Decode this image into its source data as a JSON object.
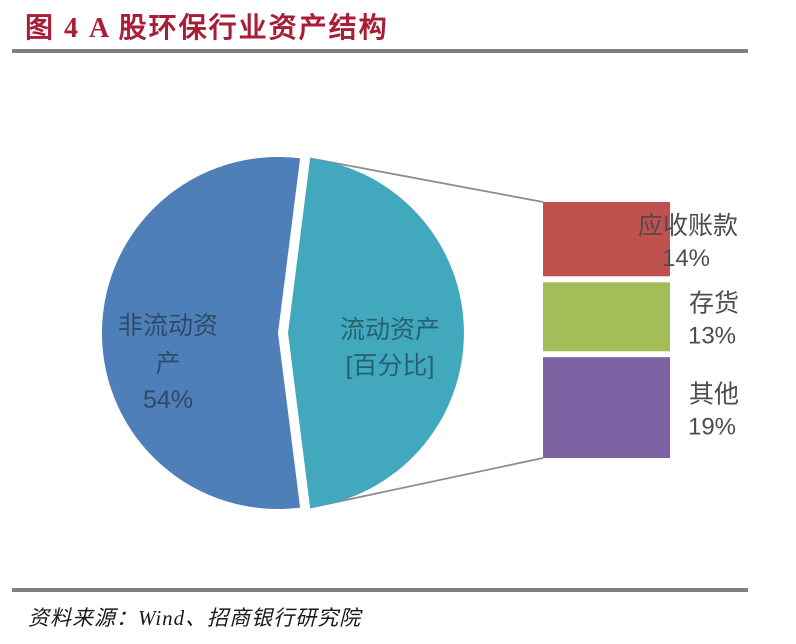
{
  "title": "图 4  A 股环保行业资产结构",
  "source": "资料来源：Wind、招商银行研究院",
  "colors": {
    "title": "#A91E37",
    "rule": "#7F7F7F",
    "pie_primary": "#4F7FB8",
    "pie_secondary": "#42A8BD",
    "pie_label_text": "rgba(0,0,0,0.42)",
    "bar_receivables": "#C0514F",
    "bar_inventory": "#A3BE59",
    "bar_other": "#7E63A4",
    "connector": "#8C8C8C",
    "bar_label_text": "#4D4D4D",
    "source_text": "#1A1A1A"
  },
  "chart_data": {
    "type": "pie",
    "subtype": "bar-of-pie",
    "title": "图 4 A 股环保行业资产结构",
    "unit": "%",
    "legend_position": "none",
    "pie_slices": [
      {
        "key": "non-current-assets",
        "name": "非流动资产",
        "label_lines": [
          "非流动资",
          "产"
        ],
        "value_pct": 54,
        "value_label": "54%",
        "color_key": "pie_primary"
      },
      {
        "key": "current-assets",
        "name": "流动资产",
        "label_lines": [
          "流动资产",
          "[百分比]"
        ],
        "value_pct": 46,
        "value_label": "",
        "color_key": "pie_secondary"
      }
    ],
    "breakdown_of_current_assets": [
      {
        "key": "accounts-receivable",
        "name": "应收账款",
        "value_pct": 14,
        "value_label": "14%",
        "color_key": "bar_receivables"
      },
      {
        "key": "inventory",
        "name": "存货",
        "value_pct": 13,
        "value_label": "13%",
        "color_key": "bar_inventory"
      },
      {
        "key": "other",
        "name": "其他",
        "value_pct": 19,
        "value_label": "19%",
        "color_key": "bar_other"
      }
    ]
  }
}
